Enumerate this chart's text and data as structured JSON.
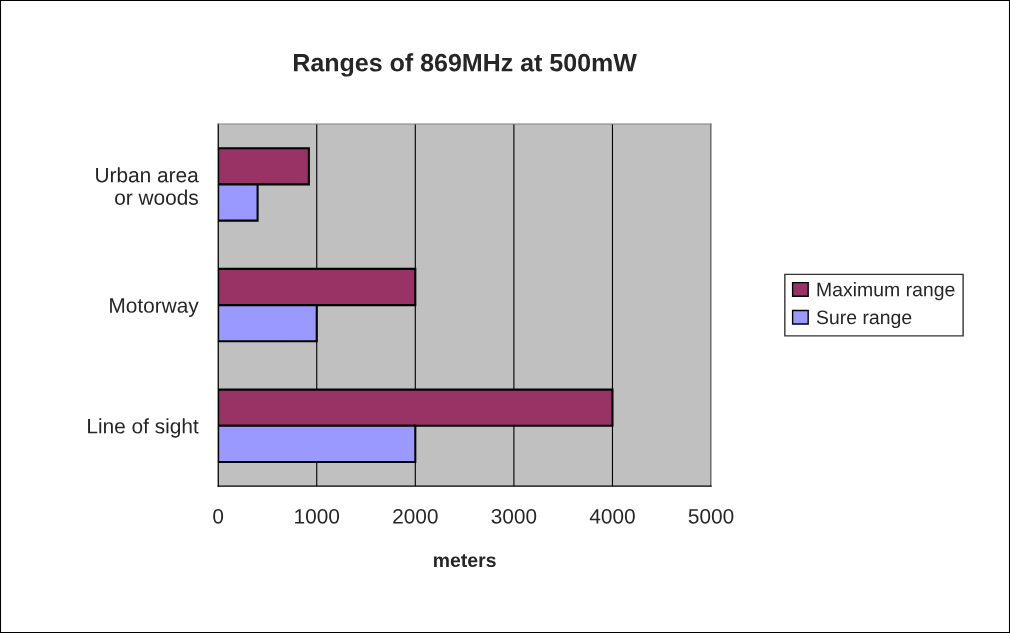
{
  "chart_data": {
    "type": "bar",
    "orientation": "horizontal",
    "title": "Ranges of 869MHz at 500mW",
    "xlabel": "meters",
    "categories": [
      "Urban area\nor woods",
      "Motorway",
      "Line of sight"
    ],
    "series": [
      {
        "name": "Maximum range",
        "color": "#993366",
        "values": [
          920,
          2000,
          4000
        ]
      },
      {
        "name": "Sure range",
        "color": "#9999ff",
        "values": [
          400,
          1000,
          2000
        ]
      }
    ],
    "xlim": [
      0,
      5000
    ],
    "xticks": [
      0,
      1000,
      2000,
      3000,
      4000,
      5000
    ],
    "grid": "x",
    "legend": "right"
  }
}
